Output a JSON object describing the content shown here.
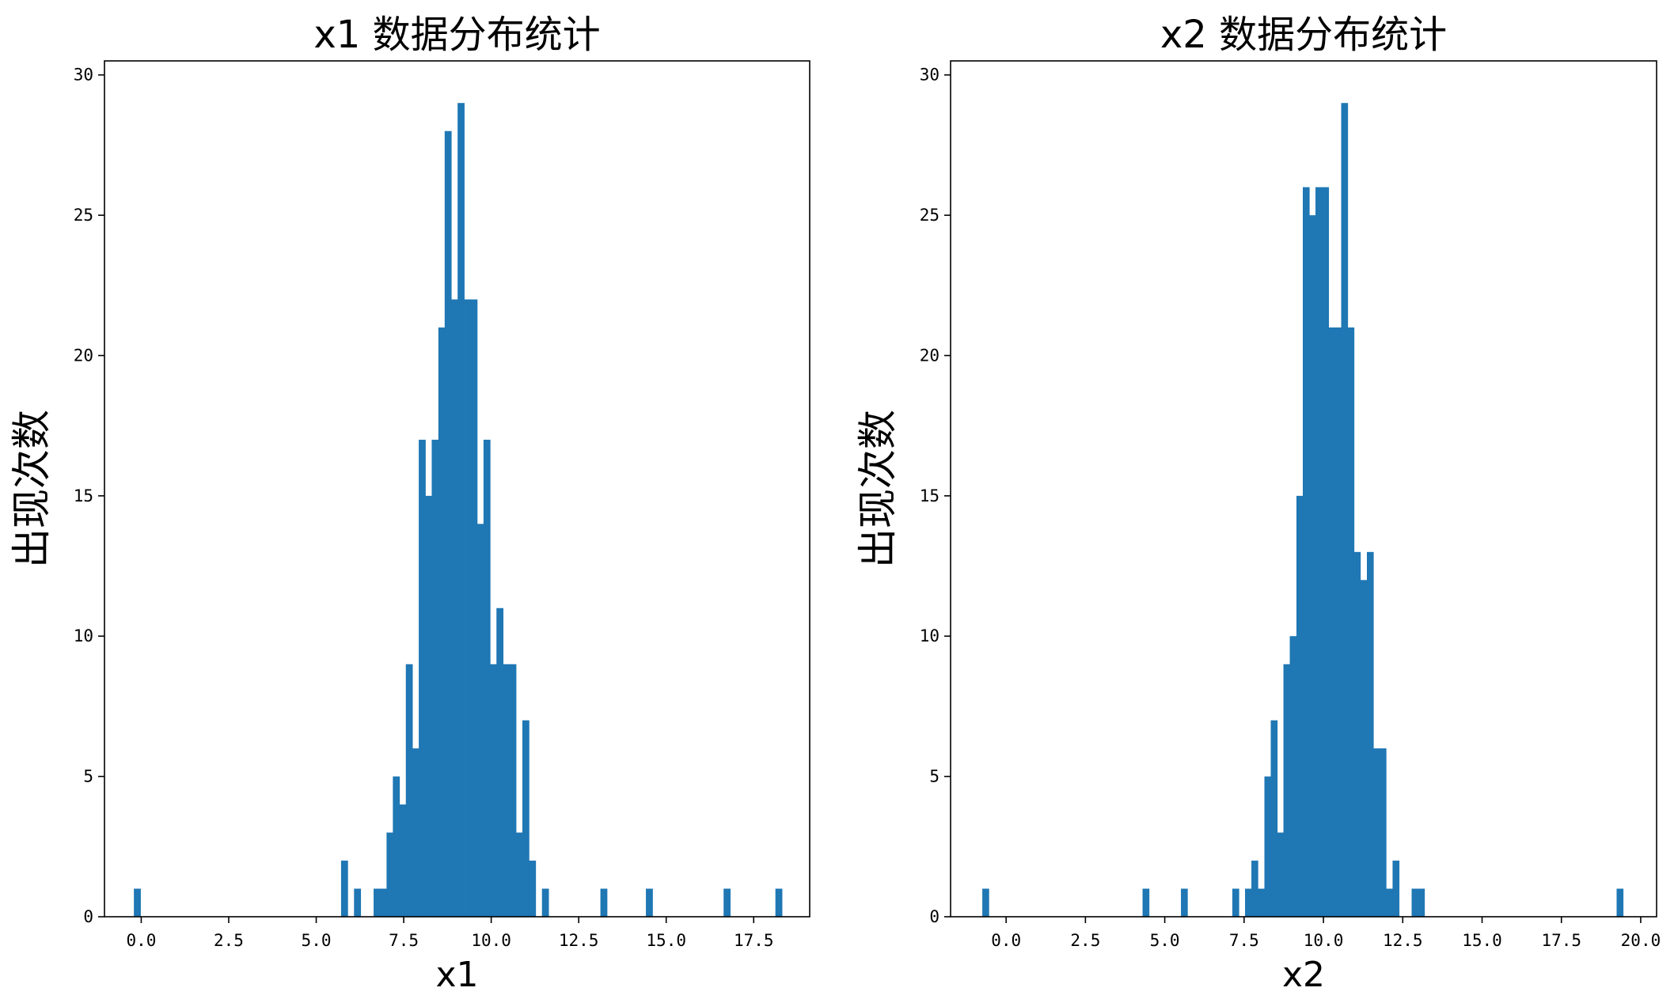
{
  "chart_data": [
    {
      "type": "bar",
      "subtype": "histogram",
      "title": "x1 数据分布统计",
      "xlabel": "x1",
      "ylabel": "出现次数",
      "xlim": [
        -1.05,
        19.1
      ],
      "ylim": [
        0,
        30.5
      ],
      "xticks": [
        0,
        2.5,
        5,
        7.5,
        10,
        12.5,
        15,
        17.5
      ],
      "xtick_labels": [
        "0.0",
        "2.5",
        "5.0",
        "7.5",
        "10.0",
        "12.5",
        "15.0",
        "17.5"
      ],
      "yticks": [
        0,
        5,
        10,
        15,
        20,
        25,
        30
      ],
      "ytick_labels": [
        "0",
        "5",
        "10",
        "15",
        "20",
        "25",
        "30"
      ],
      "color": "#1f77b4",
      "bin_width": 0.185,
      "bins": [
        {
          "x": -0.21,
          "count": 1
        },
        {
          "x": 5.71,
          "count": 2
        },
        {
          "x": 6.08,
          "count": 1
        },
        {
          "x": 6.64,
          "count": 1
        },
        {
          "x": 6.82,
          "count": 1
        },
        {
          "x": 7.01,
          "count": 3
        },
        {
          "x": 7.19,
          "count": 5
        },
        {
          "x": 7.38,
          "count": 4
        },
        {
          "x": 7.56,
          "count": 9
        },
        {
          "x": 7.75,
          "count": 6
        },
        {
          "x": 7.93,
          "count": 17
        },
        {
          "x": 8.12,
          "count": 15
        },
        {
          "x": 8.3,
          "count": 17
        },
        {
          "x": 8.49,
          "count": 21
        },
        {
          "x": 8.67,
          "count": 28
        },
        {
          "x": 8.86,
          "count": 22
        },
        {
          "x": 9.04,
          "count": 29
        },
        {
          "x": 9.23,
          "count": 22
        },
        {
          "x": 9.41,
          "count": 22
        },
        {
          "x": 9.6,
          "count": 14
        },
        {
          "x": 9.78,
          "count": 17
        },
        {
          "x": 9.97,
          "count": 9
        },
        {
          "x": 10.15,
          "count": 11
        },
        {
          "x": 10.34,
          "count": 9
        },
        {
          "x": 10.52,
          "count": 9
        },
        {
          "x": 10.71,
          "count": 3
        },
        {
          "x": 10.89,
          "count": 7
        },
        {
          "x": 11.08,
          "count": 2
        },
        {
          "x": 11.45,
          "count": 1
        },
        {
          "x": 13.12,
          "count": 1
        },
        {
          "x": 14.42,
          "count": 1
        },
        {
          "x": 16.64,
          "count": 1
        },
        {
          "x": 18.12,
          "count": 1
        }
      ]
    },
    {
      "type": "bar",
      "subtype": "histogram",
      "title": "x2 数据分布统计",
      "xlabel": "x2",
      "ylabel": "出现次数",
      "xlim": [
        -1.75,
        20.5
      ],
      "ylim": [
        0,
        30.5
      ],
      "xticks": [
        0,
        2.5,
        5,
        7.5,
        10,
        12.5,
        15,
        17.5,
        20
      ],
      "xtick_labels": [
        "0.0",
        "2.5",
        "5.0",
        "7.5",
        "10.0",
        "12.5",
        "15.0",
        "17.5",
        "20.0"
      ],
      "yticks": [
        0,
        5,
        10,
        15,
        20,
        25,
        30
      ],
      "ytick_labels": [
        "0",
        "5",
        "10",
        "15",
        "20",
        "25",
        "30"
      ],
      "color": "#1f77b4",
      "bin_width": 0.2,
      "bins": [
        {
          "x": -0.75,
          "count": 1
        },
        {
          "x": 4.3,
          "count": 1
        },
        {
          "x": 5.51,
          "count": 1
        },
        {
          "x": 7.13,
          "count": 1
        },
        {
          "x": 7.53,
          "count": 1
        },
        {
          "x": 7.73,
          "count": 2
        },
        {
          "x": 7.93,
          "count": 1
        },
        {
          "x": 8.14,
          "count": 5
        },
        {
          "x": 8.34,
          "count": 7
        },
        {
          "x": 8.54,
          "count": 3
        },
        {
          "x": 8.74,
          "count": 9
        },
        {
          "x": 8.94,
          "count": 10
        },
        {
          "x": 9.15,
          "count": 15
        },
        {
          "x": 9.35,
          "count": 26
        },
        {
          "x": 9.55,
          "count": 25
        },
        {
          "x": 9.75,
          "count": 26
        },
        {
          "x": 9.96,
          "count": 26
        },
        {
          "x": 10.16,
          "count": 21
        },
        {
          "x": 10.36,
          "count": 21
        },
        {
          "x": 10.56,
          "count": 29
        },
        {
          "x": 10.76,
          "count": 21
        },
        {
          "x": 10.96,
          "count": 13
        },
        {
          "x": 11.17,
          "count": 12
        },
        {
          "x": 11.37,
          "count": 13
        },
        {
          "x": 11.57,
          "count": 6
        },
        {
          "x": 11.77,
          "count": 6
        },
        {
          "x": 11.97,
          "count": 1
        },
        {
          "x": 12.18,
          "count": 2
        },
        {
          "x": 12.78,
          "count": 1
        },
        {
          "x": 12.98,
          "count": 1
        },
        {
          "x": 19.24,
          "count": 1
        }
      ]
    }
  ]
}
